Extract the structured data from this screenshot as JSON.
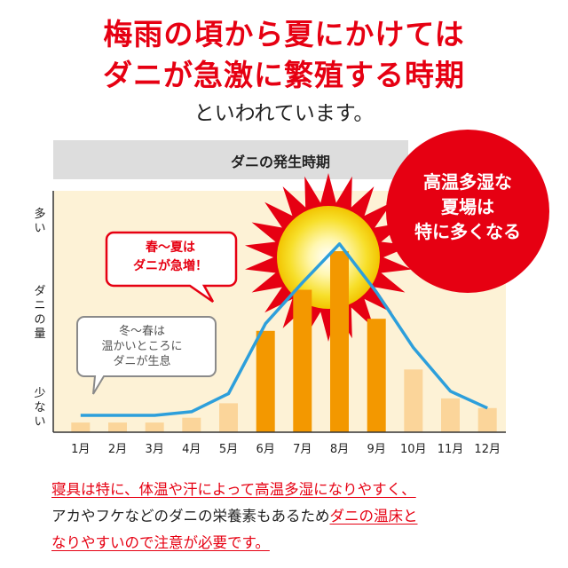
{
  "headline": {
    "line1": "梅雨の頃から夏にかけては",
    "line2": "ダニが急激に繁殖する時期",
    "sub": "といわれています。"
  },
  "chart_data": {
    "type": "bar",
    "title": "ダニの発生時期",
    "categories": [
      "1月",
      "2月",
      "3月",
      "4月",
      "5月",
      "6月",
      "7月",
      "8月",
      "9月",
      "10月",
      "11月",
      "12月"
    ],
    "series": [
      {
        "type": "bar",
        "values": [
          0.4,
          0.4,
          0.4,
          0.6,
          1.2,
          4.2,
          5.9,
          7.5,
          4.7,
          2.6,
          1.4,
          1.0
        ]
      },
      {
        "type": "line",
        "values": [
          0.7,
          0.7,
          0.7,
          0.85,
          1.6,
          4.5,
          6.2,
          7.8,
          5.8,
          3.5,
          1.7,
          1.0
        ]
      }
    ],
    "highlight_months": [
      "6月",
      "7月",
      "8月",
      "9月"
    ],
    "ylim": [
      0,
      10
    ],
    "ylabel": "ダニの量",
    "y_axis_marks": {
      "top": "多い",
      "bottom": "少ない"
    },
    "grid": false,
    "colors": {
      "bar_peak": "#f39800",
      "bar_low": "#fbd59a",
      "line": "#2d9fdb",
      "bg": "#fdf2d6",
      "title_bar": "#dddddd",
      "sun_outer": "#e60012",
      "sun_inner": "#f7df2a"
    }
  },
  "callouts": {
    "winter": [
      "冬〜春は",
      "温かいところに",
      "ダニが生息"
    ],
    "spring": [
      "春〜夏は",
      "ダニが急増！"
    ],
    "summer": [
      "高温多湿な",
      "夏場は",
      "特に多くなる"
    ]
  },
  "footer": {
    "line1_red": "寝具は特に、体温や汗によって高温多湿になりやすく、",
    "line2_black": "アカやフケなどのダニの栄養素もあるため",
    "line2_red": "ダニの温床と",
    "line3_red": "なりやすいので注意が必要です。"
  }
}
